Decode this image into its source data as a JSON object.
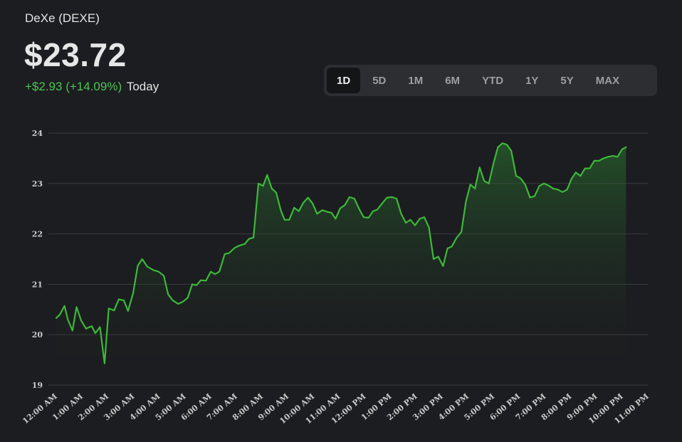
{
  "header": {
    "ticker": "DeXe (DEXE)",
    "price": "$23.72",
    "change": "+$2.93 (+14.09%)",
    "period_label": "Today"
  },
  "range_selector": {
    "options": [
      "1D",
      "5D",
      "1M",
      "6M",
      "YTD",
      "1Y",
      "5Y",
      "MAX"
    ],
    "active": "1D"
  },
  "colors": {
    "background": "#1c1d20",
    "line": "#3db83a",
    "positive": "#4cc552",
    "grid": "#3a3b3e"
  },
  "chart_data": {
    "type": "area",
    "title": "",
    "xlabel": "",
    "ylabel": "",
    "ylim": [
      19,
      24
    ],
    "yticks": [
      19,
      20,
      21,
      22,
      23,
      24
    ],
    "xlim": [
      0,
      23
    ],
    "xticks": [
      {
        "h": 0,
        "label": "12:00 AM"
      },
      {
        "h": 1,
        "label": "1:00 AM"
      },
      {
        "h": 2,
        "label": "2:00 AM"
      },
      {
        "h": 3,
        "label": "3:00 AM"
      },
      {
        "h": 4,
        "label": "4:00 AM"
      },
      {
        "h": 5,
        "label": "5:00 AM"
      },
      {
        "h": 6,
        "label": "6:00 AM"
      },
      {
        "h": 7,
        "label": "7:00 AM"
      },
      {
        "h": 8,
        "label": "8:00 AM"
      },
      {
        "h": 9,
        "label": "9:00 AM"
      },
      {
        "h": 10,
        "label": "10:00 AM"
      },
      {
        "h": 11,
        "label": "11:00 AM"
      },
      {
        "h": 12,
        "label": "12:00 PM"
      },
      {
        "h": 13,
        "label": "1:00 PM"
      },
      {
        "h": 14,
        "label": "2:00 PM"
      },
      {
        "h": 15,
        "label": "3:00 PM"
      },
      {
        "h": 16,
        "label": "4:00 PM"
      },
      {
        "h": 17,
        "label": "5:00 PM"
      },
      {
        "h": 18,
        "label": "6:00 PM"
      },
      {
        "h": 19,
        "label": "7:00 PM"
      },
      {
        "h": 20,
        "label": "8:00 PM"
      },
      {
        "h": 21,
        "label": "9:00 PM"
      },
      {
        "h": 22,
        "label": "10:00 PM"
      },
      {
        "h": 23,
        "label": "11:00 PM"
      }
    ],
    "grid": true,
    "legend": "none",
    "series": [
      {
        "values": [
          [
            0.0,
            20.33
          ],
          [
            0.14,
            20.4
          ],
          [
            0.32,
            20.57
          ],
          [
            0.45,
            20.3
          ],
          [
            0.63,
            20.08
          ],
          [
            0.79,
            20.55
          ],
          [
            0.97,
            20.28
          ],
          [
            1.16,
            20.12
          ],
          [
            1.38,
            20.17
          ],
          [
            1.52,
            20.03
          ],
          [
            1.7,
            20.15
          ],
          [
            1.88,
            19.43
          ],
          [
            2.04,
            20.52
          ],
          [
            2.25,
            20.48
          ],
          [
            2.43,
            20.7
          ],
          [
            2.63,
            20.68
          ],
          [
            2.79,
            20.47
          ],
          [
            2.99,
            20.82
          ],
          [
            3.17,
            21.37
          ],
          [
            3.34,
            21.5
          ],
          [
            3.54,
            21.35
          ],
          [
            3.78,
            21.28
          ],
          [
            3.98,
            21.25
          ],
          [
            4.18,
            21.17
          ],
          [
            4.35,
            20.8
          ],
          [
            4.53,
            20.68
          ],
          [
            4.74,
            20.61
          ],
          [
            4.91,
            20.65
          ],
          [
            5.11,
            20.73
          ],
          [
            5.29,
            21.0
          ],
          [
            5.45,
            20.98
          ],
          [
            5.62,
            21.08
          ],
          [
            5.82,
            21.07
          ],
          [
            6.01,
            21.25
          ],
          [
            6.17,
            21.2
          ],
          [
            6.34,
            21.25
          ],
          [
            6.55,
            21.6
          ],
          [
            6.72,
            21.62
          ],
          [
            6.93,
            21.72
          ],
          [
            7.13,
            21.77
          ],
          [
            7.33,
            21.8
          ],
          [
            7.49,
            21.9
          ],
          [
            7.67,
            21.93
          ],
          [
            7.86,
            23.0
          ],
          [
            8.04,
            22.95
          ],
          [
            8.2,
            23.17
          ],
          [
            8.38,
            22.9
          ],
          [
            8.55,
            22.82
          ],
          [
            8.73,
            22.47
          ],
          [
            8.88,
            22.28
          ],
          [
            9.06,
            22.28
          ],
          [
            9.25,
            22.52
          ],
          [
            9.43,
            22.45
          ],
          [
            9.61,
            22.62
          ],
          [
            9.79,
            22.72
          ],
          [
            9.97,
            22.6
          ],
          [
            10.14,
            22.4
          ],
          [
            10.34,
            22.47
          ],
          [
            10.52,
            22.44
          ],
          [
            10.7,
            22.42
          ],
          [
            10.86,
            22.3
          ],
          [
            11.04,
            22.51
          ],
          [
            11.22,
            22.57
          ],
          [
            11.4,
            22.73
          ],
          [
            11.59,
            22.7
          ],
          [
            11.77,
            22.5
          ],
          [
            11.95,
            22.33
          ],
          [
            12.14,
            22.32
          ],
          [
            12.32,
            22.45
          ],
          [
            12.48,
            22.48
          ],
          [
            12.68,
            22.61
          ],
          [
            12.86,
            22.72
          ],
          [
            13.05,
            22.73
          ],
          [
            13.23,
            22.7
          ],
          [
            13.41,
            22.4
          ],
          [
            13.59,
            22.22
          ],
          [
            13.77,
            22.28
          ],
          [
            13.95,
            22.17
          ],
          [
            14.13,
            22.3
          ],
          [
            14.31,
            22.33
          ],
          [
            14.49,
            22.13
          ],
          [
            14.67,
            21.5
          ],
          [
            14.85,
            21.55
          ],
          [
            15.04,
            21.36
          ],
          [
            15.21,
            21.71
          ],
          [
            15.38,
            21.75
          ],
          [
            15.56,
            21.92
          ],
          [
            15.75,
            22.04
          ],
          [
            15.93,
            22.65
          ],
          [
            16.1,
            22.98
          ],
          [
            16.28,
            22.9
          ],
          [
            16.46,
            23.32
          ],
          [
            16.64,
            23.05
          ],
          [
            16.82,
            23.0
          ],
          [
            17.0,
            23.4
          ],
          [
            17.17,
            23.72
          ],
          [
            17.35,
            23.8
          ],
          [
            17.52,
            23.77
          ],
          [
            17.69,
            23.65
          ],
          [
            17.88,
            23.15
          ],
          [
            18.06,
            23.1
          ],
          [
            18.24,
            22.97
          ],
          [
            18.42,
            22.72
          ],
          [
            18.6,
            22.75
          ],
          [
            18.78,
            22.95
          ],
          [
            18.96,
            23.0
          ],
          [
            19.14,
            22.96
          ],
          [
            19.32,
            22.9
          ],
          [
            19.5,
            22.88
          ],
          [
            19.68,
            22.83
          ],
          [
            19.86,
            22.88
          ],
          [
            20.04,
            23.1
          ],
          [
            20.2,
            23.22
          ],
          [
            20.38,
            23.15
          ],
          [
            20.56,
            23.3
          ],
          [
            20.74,
            23.3
          ],
          [
            20.92,
            23.45
          ],
          [
            21.1,
            23.45
          ],
          [
            21.28,
            23.5
          ],
          [
            21.46,
            23.53
          ],
          [
            21.64,
            23.55
          ],
          [
            21.82,
            23.53
          ],
          [
            22.0,
            23.68
          ],
          [
            22.15,
            23.72
          ]
        ]
      }
    ]
  }
}
